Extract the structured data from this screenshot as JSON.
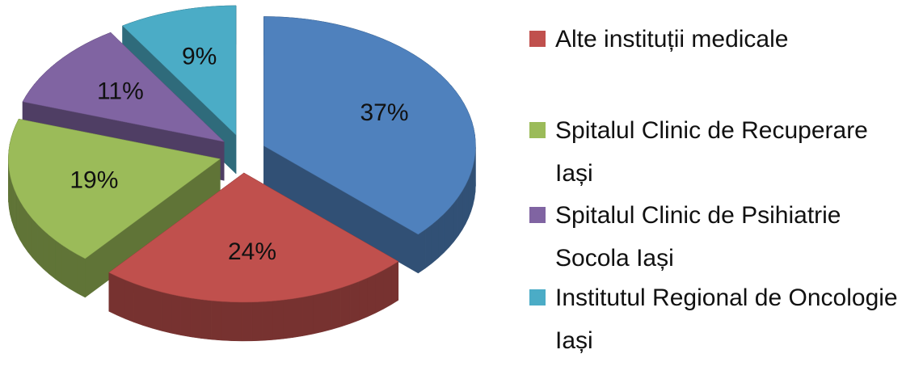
{
  "chart_data": {
    "type": "pie",
    "categories": [
      null,
      "Alte instituții medicale",
      "Spitalul Clinic de Recuperare Iași",
      "Spitalul Clinic de Psihiatrie Socola Iași",
      "Institutul Regional de Oncologie Iași"
    ],
    "values": [
      37,
      24,
      19,
      11,
      9
    ],
    "value_labels": [
      "37%",
      "24%",
      "19%",
      "11%",
      "9%"
    ],
    "colors": [
      "#4f81bd",
      "#c0504d",
      "#9bbb59",
      "#8064a2",
      "#4bacc6"
    ],
    "legend": "right"
  }
}
